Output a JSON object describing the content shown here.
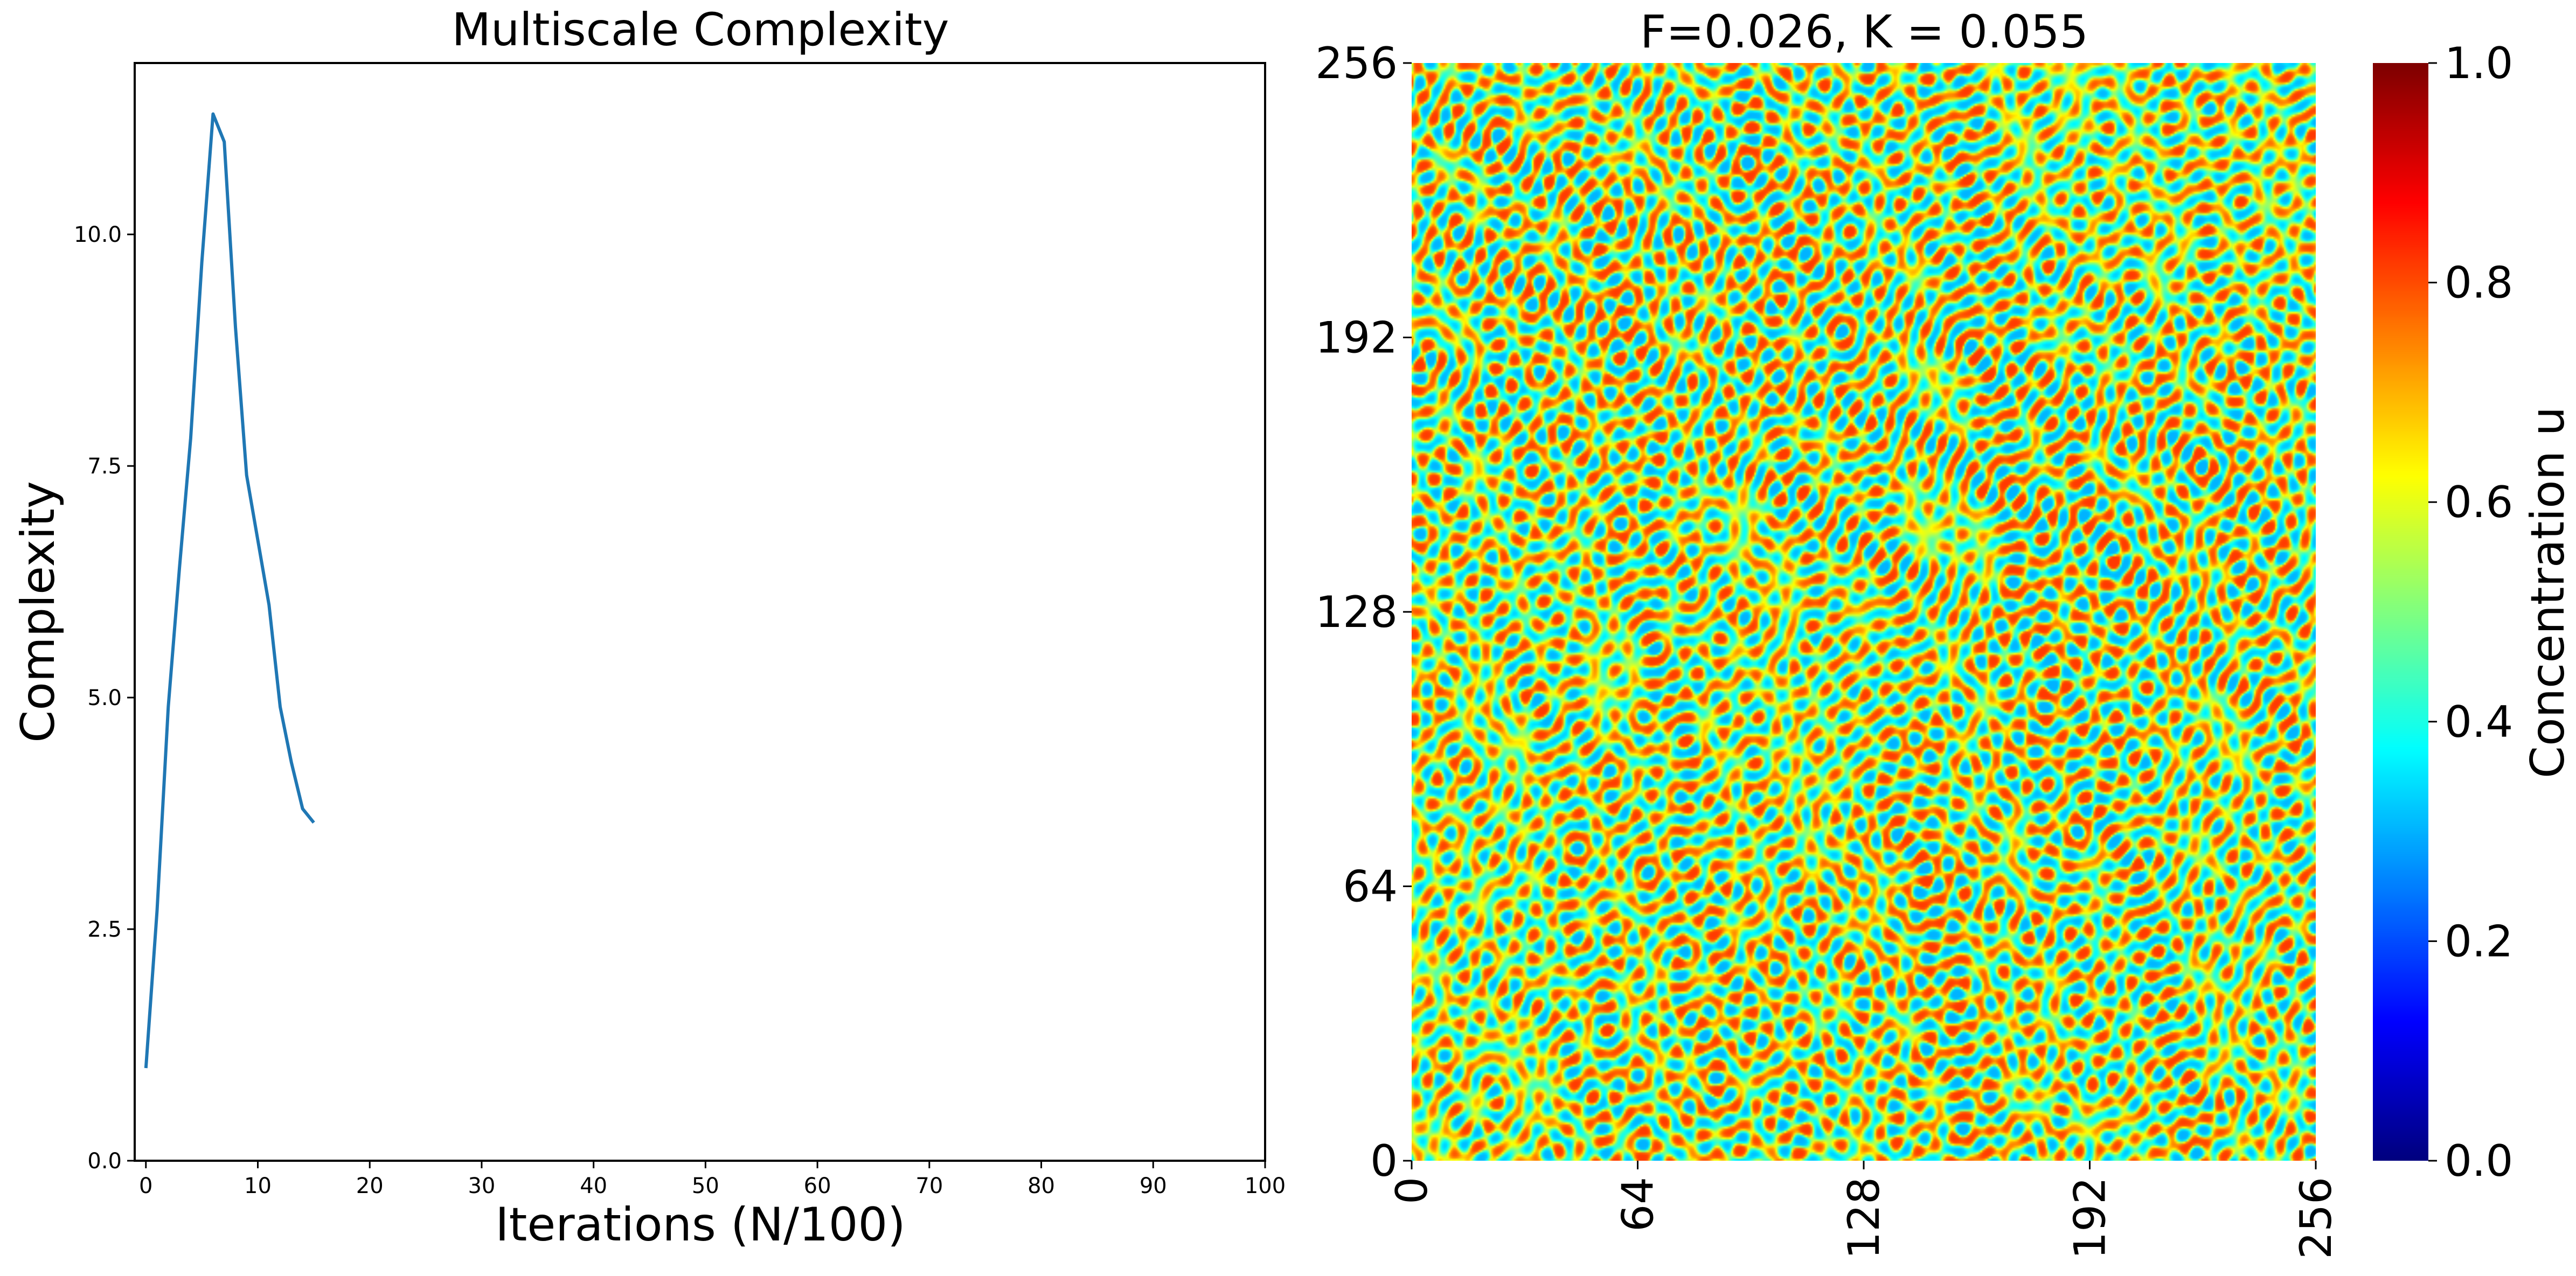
{
  "chart_data": [
    {
      "type": "line",
      "title": "Multiscale Complexity",
      "xlabel": "Iterations (N/100)",
      "ylabel": "Complexity",
      "xlim": [
        -1,
        100
      ],
      "ylim": [
        0,
        11.85
      ],
      "xticks": [
        0,
        10,
        20,
        30,
        40,
        50,
        60,
        70,
        80,
        90,
        100
      ],
      "yticks": [
        0.0,
        2.5,
        5.0,
        7.5,
        10.0
      ],
      "ytick_labels": [
        "0.0",
        "2.5",
        "5.0",
        "7.5",
        "10.0"
      ],
      "grid": false,
      "color": "#1f77b4",
      "x": [
        0,
        1,
        2,
        3,
        4,
        5,
        6,
        7,
        8,
        9,
        10,
        11,
        12,
        13,
        14,
        15
      ],
      "y": [
        1.0,
        2.7,
        4.9,
        6.4,
        7.8,
        9.7,
        11.3,
        11.0,
        9.0,
        7.4,
        6.7,
        6.0,
        4.9,
        4.3,
        3.8,
        3.65
      ]
    },
    {
      "type": "heatmap",
      "title": "F=0.026, K = 0.055",
      "xlim": [
        0,
        256
      ],
      "ylim": [
        0,
        256
      ],
      "xticks": [
        "0",
        "64",
        "128",
        "192",
        "256"
      ],
      "yticks": [
        "0",
        "64",
        "128",
        "192",
        "256"
      ],
      "colormap": "jet",
      "colorbar": {
        "label": "Concentration u",
        "range": [
          0.0,
          1.0
        ],
        "ticks": [
          "0.0",
          "0.2",
          "0.4",
          "0.6",
          "0.8",
          "1.0"
        ]
      }
    }
  ]
}
